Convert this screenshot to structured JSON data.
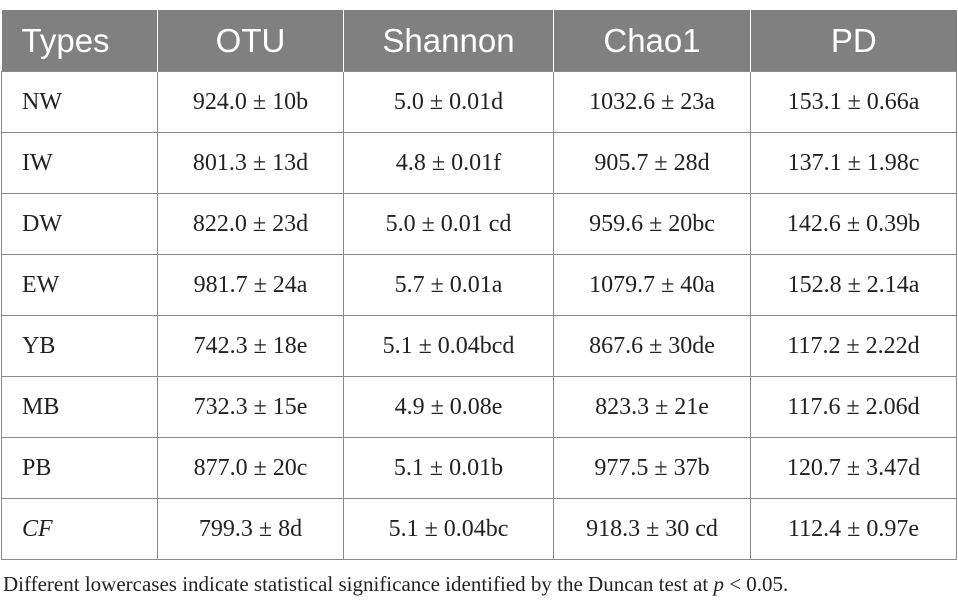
{
  "table": {
    "headers": [
      "Types",
      "OTU",
      "Shannon",
      "Chao1",
      "PD"
    ],
    "rows": [
      {
        "type": "NW",
        "otu": "924.0 ± 10b",
        "shannon": "5.0 ± 0.01d",
        "chao1": "1032.6 ± 23a",
        "pd": "153.1 ± 0.66a"
      },
      {
        "type": "IW",
        "otu": "801.3 ± 13d",
        "shannon": "4.8 ± 0.01f",
        "chao1": "905.7 ± 28d",
        "pd": "137.1 ± 1.98c"
      },
      {
        "type": "DW",
        "otu": "822.0 ± 23d",
        "shannon": "5.0 ± 0.01 cd",
        "chao1": "959.6 ± 20bc",
        "pd": "142.6 ± 0.39b"
      },
      {
        "type": "EW",
        "otu": "981.7 ± 24a",
        "shannon": "5.7 ± 0.01a",
        "chao1": "1079.7 ± 40a",
        "pd": "152.8 ± 2.14a"
      },
      {
        "type": "YB",
        "otu": "742.3 ± 18e",
        "shannon": "5.1 ± 0.04bcd",
        "chao1": "867.6 ± 30de",
        "pd": "117.2 ± 2.22d"
      },
      {
        "type": "MB",
        "otu": "732.3 ± 15e",
        "shannon": "4.9 ± 0.08e",
        "chao1": "823.3 ± 21e",
        "pd": "117.6 ± 2.06d"
      },
      {
        "type": "PB",
        "otu": "877.0 ± 20c",
        "shannon": "5.1 ± 0.01b",
        "chao1": "977.5 ± 37b",
        "pd": "120.7 ± 3.47d"
      },
      {
        "type": "CF",
        "otu": "799.3 ± 8d",
        "shannon": "5.1 ± 0.04bc",
        "chao1": "918.3 ± 30 cd",
        "pd": "112.4 ± 0.97e"
      }
    ]
  },
  "footnote": {
    "text_before": "Different lowercases indicate statistical significance identified by the Duncan test at ",
    "p_symbol": "p",
    "text_after": " < 0.05."
  }
}
